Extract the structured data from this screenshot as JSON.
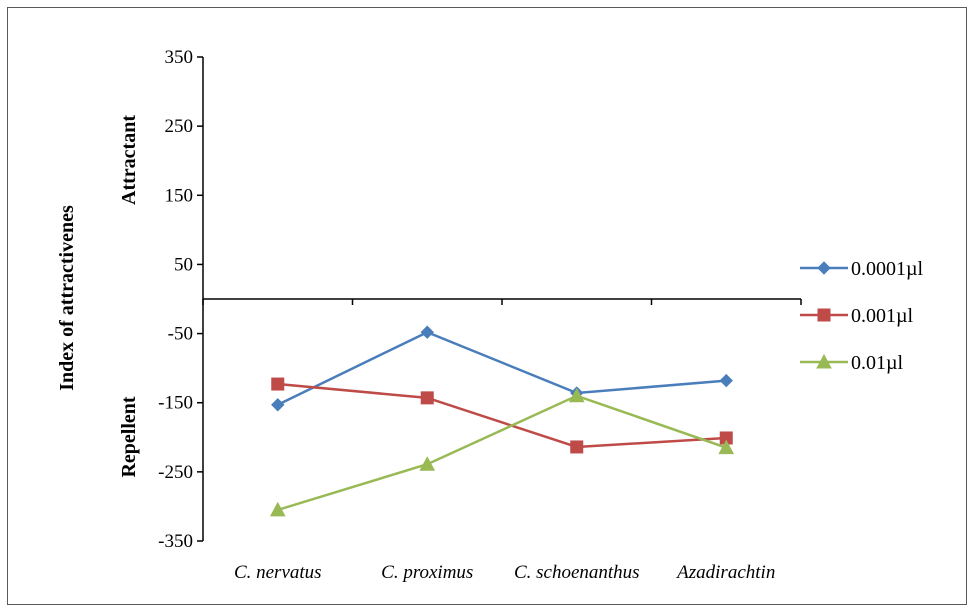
{
  "chart_data": {
    "type": "line",
    "categories": [
      "C. nervatus",
      "C. proximus",
      "C. schoenanthus",
      "Azadirachtin"
    ],
    "series": [
      {
        "name": "0.0001µl",
        "values": [
          -153,
          -48,
          -136,
          -118
        ],
        "color": "#4a7ebb",
        "marker": "diamond"
      },
      {
        "name": "0.001µl",
        "values": [
          -123,
          -143,
          -214,
          -201
        ],
        "color": "#be4b48",
        "marker": "square"
      },
      {
        "name": "0.01µl",
        "values": [
          -305,
          -239,
          -140,
          -215
        ],
        "color": "#98b954",
        "marker": "triangle"
      }
    ],
    "ylabel": "Index of attractivenes",
    "region_labels": {
      "upper": "Attractant",
      "lower": "Repellent"
    },
    "ylim": [
      -350,
      350
    ],
    "yticks": [
      -350,
      -250,
      -150,
      -50,
      50,
      150,
      250,
      350
    ],
    "xaxis_crosses_at": 0,
    "grid": false,
    "legend_position": "right"
  }
}
